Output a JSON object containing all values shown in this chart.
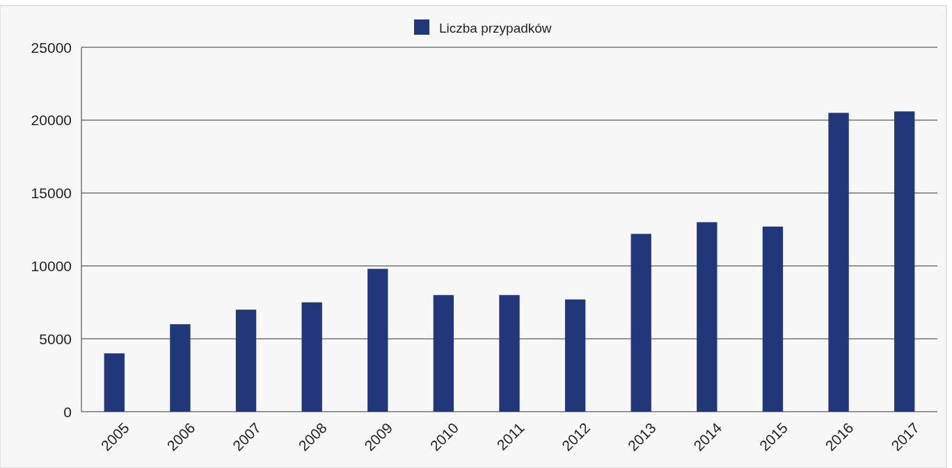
{
  "chart_data": {
    "type": "bar",
    "categories": [
      "2005",
      "2006",
      "2007",
      "2008",
      "2009",
      "2010",
      "2011",
      "2012",
      "2013",
      "2014",
      "2015",
      "2016",
      "2017"
    ],
    "series": [
      {
        "name": "Liczba przypadków",
        "color": "#22367a",
        "values": [
          4000,
          6000,
          7000,
          7500,
          9800,
          8000,
          8000,
          7700,
          12200,
          13000,
          12700,
          20500,
          20600
        ]
      }
    ],
    "ylim": [
      0,
      25000
    ],
    "yticks": [
      0,
      5000,
      10000,
      15000,
      20000,
      25000
    ],
    "grid": "y",
    "legend": "top"
  }
}
